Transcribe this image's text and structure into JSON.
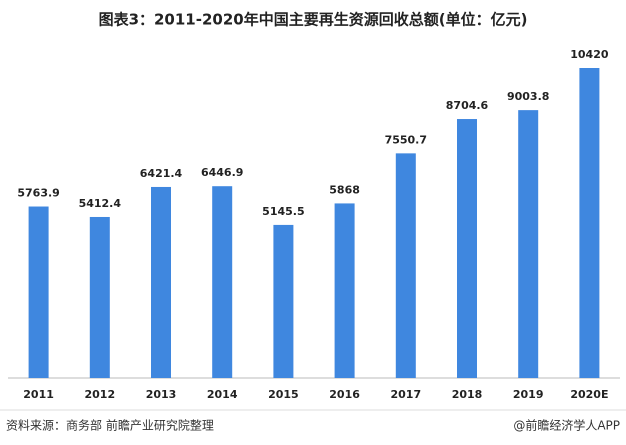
{
  "chart_data": {
    "type": "bar",
    "title": "图表3：2011-2020年中国主要再生资源回收总额(单位：亿元)",
    "categories": [
      "2011",
      "2012",
      "2013",
      "2014",
      "2015",
      "2016",
      "2017",
      "2018",
      "2019",
      "2020E"
    ],
    "values": [
      5763.9,
      5412.4,
      6421.4,
      6446.9,
      5145.5,
      5868,
      7550.7,
      8704.6,
      9003.8,
      10420
    ],
    "color": "#3f87df",
    "source": "资料来源：商务部 前瞻产业研究院整理",
    "credit": "@前瞻经济学人APP"
  }
}
